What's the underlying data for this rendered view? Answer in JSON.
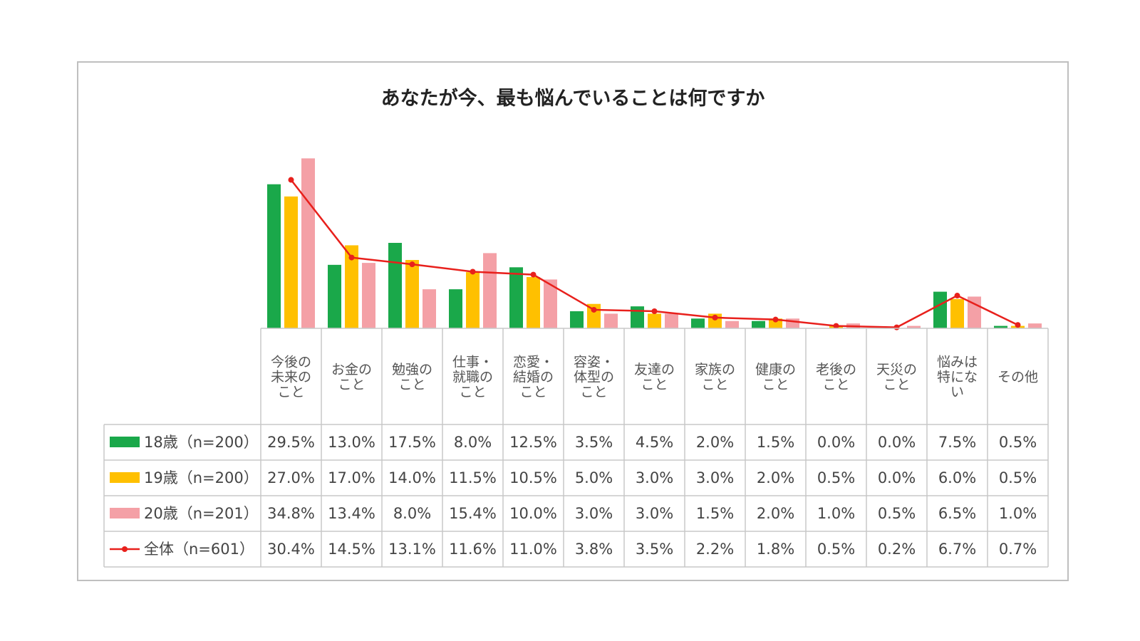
{
  "chart_data": {
    "type": "bar",
    "title": "あなたが今、最も悩んでいることは何ですか",
    "categories": [
      [
        "今後の",
        "未来の",
        "こと"
      ],
      [
        "お金の",
        "こと"
      ],
      [
        "勉強の",
        "こと"
      ],
      [
        "仕事・",
        "就職の",
        "こと"
      ],
      [
        "恋愛・",
        "結婚の",
        "こと"
      ],
      [
        "容姿・",
        "体型の",
        "こと"
      ],
      [
        "友達の",
        "こと"
      ],
      [
        "家族の",
        "こと"
      ],
      [
        "健康の",
        "こと"
      ],
      [
        "老後の",
        "こと"
      ],
      [
        "天災の",
        "こと"
      ],
      [
        "悩みは",
        "特にな",
        "い"
      ],
      [
        "その他"
      ]
    ],
    "series": [
      {
        "name": "18歳（n=200）",
        "kind": "bar",
        "color": "#1aa84a",
        "values": [
          29.5,
          13.0,
          17.5,
          8.0,
          12.5,
          3.5,
          4.5,
          2.0,
          1.5,
          0.0,
          0.0,
          7.5,
          0.5
        ],
        "labels": [
          "29.5%",
          "13.0%",
          "17.5%",
          "8.0%",
          "12.5%",
          "3.5%",
          "4.5%",
          "2.0%",
          "1.5%",
          "0.0%",
          "0.0%",
          "7.5%",
          "0.5%"
        ]
      },
      {
        "name": "19歳（n=200）",
        "kind": "bar",
        "color": "#ffc000",
        "values": [
          27.0,
          17.0,
          14.0,
          11.5,
          10.5,
          5.0,
          3.0,
          3.0,
          2.0,
          0.5,
          0.0,
          6.0,
          0.5
        ],
        "labels": [
          "27.0%",
          "17.0%",
          "14.0%",
          "11.5%",
          "10.5%",
          "5.0%",
          "3.0%",
          "3.0%",
          "2.0%",
          "0.5%",
          "0.0%",
          "6.0%",
          "0.5%"
        ]
      },
      {
        "name": "20歳（n=201）",
        "kind": "bar",
        "color": "#f4a0a6",
        "values": [
          34.8,
          13.4,
          8.0,
          15.4,
          10.0,
          3.0,
          3.0,
          1.5,
          2.0,
          1.0,
          0.5,
          6.5,
          1.0
        ],
        "labels": [
          "34.8%",
          "13.4%",
          "8.0%",
          "15.4%",
          "10.0%",
          "3.0%",
          "3.0%",
          "1.5%",
          "2.0%",
          "1.0%",
          "0.5%",
          "6.5%",
          "1.0%"
        ]
      },
      {
        "name": "全体（n=601）",
        "kind": "line",
        "color": "#e8201c",
        "values": [
          30.4,
          14.5,
          13.1,
          11.6,
          11.0,
          3.8,
          3.5,
          2.2,
          1.8,
          0.5,
          0.2,
          6.7,
          0.7
        ],
        "labels": [
          "30.4%",
          "14.5%",
          "13.1%",
          "11.6%",
          "11.0%",
          "3.8%",
          "3.5%",
          "2.2%",
          "1.8%",
          "0.5%",
          "0.2%",
          "6.7%",
          "0.7%"
        ]
      }
    ],
    "ylim": [
      0,
      35
    ],
    "grid": false,
    "legend": "data-table"
  }
}
